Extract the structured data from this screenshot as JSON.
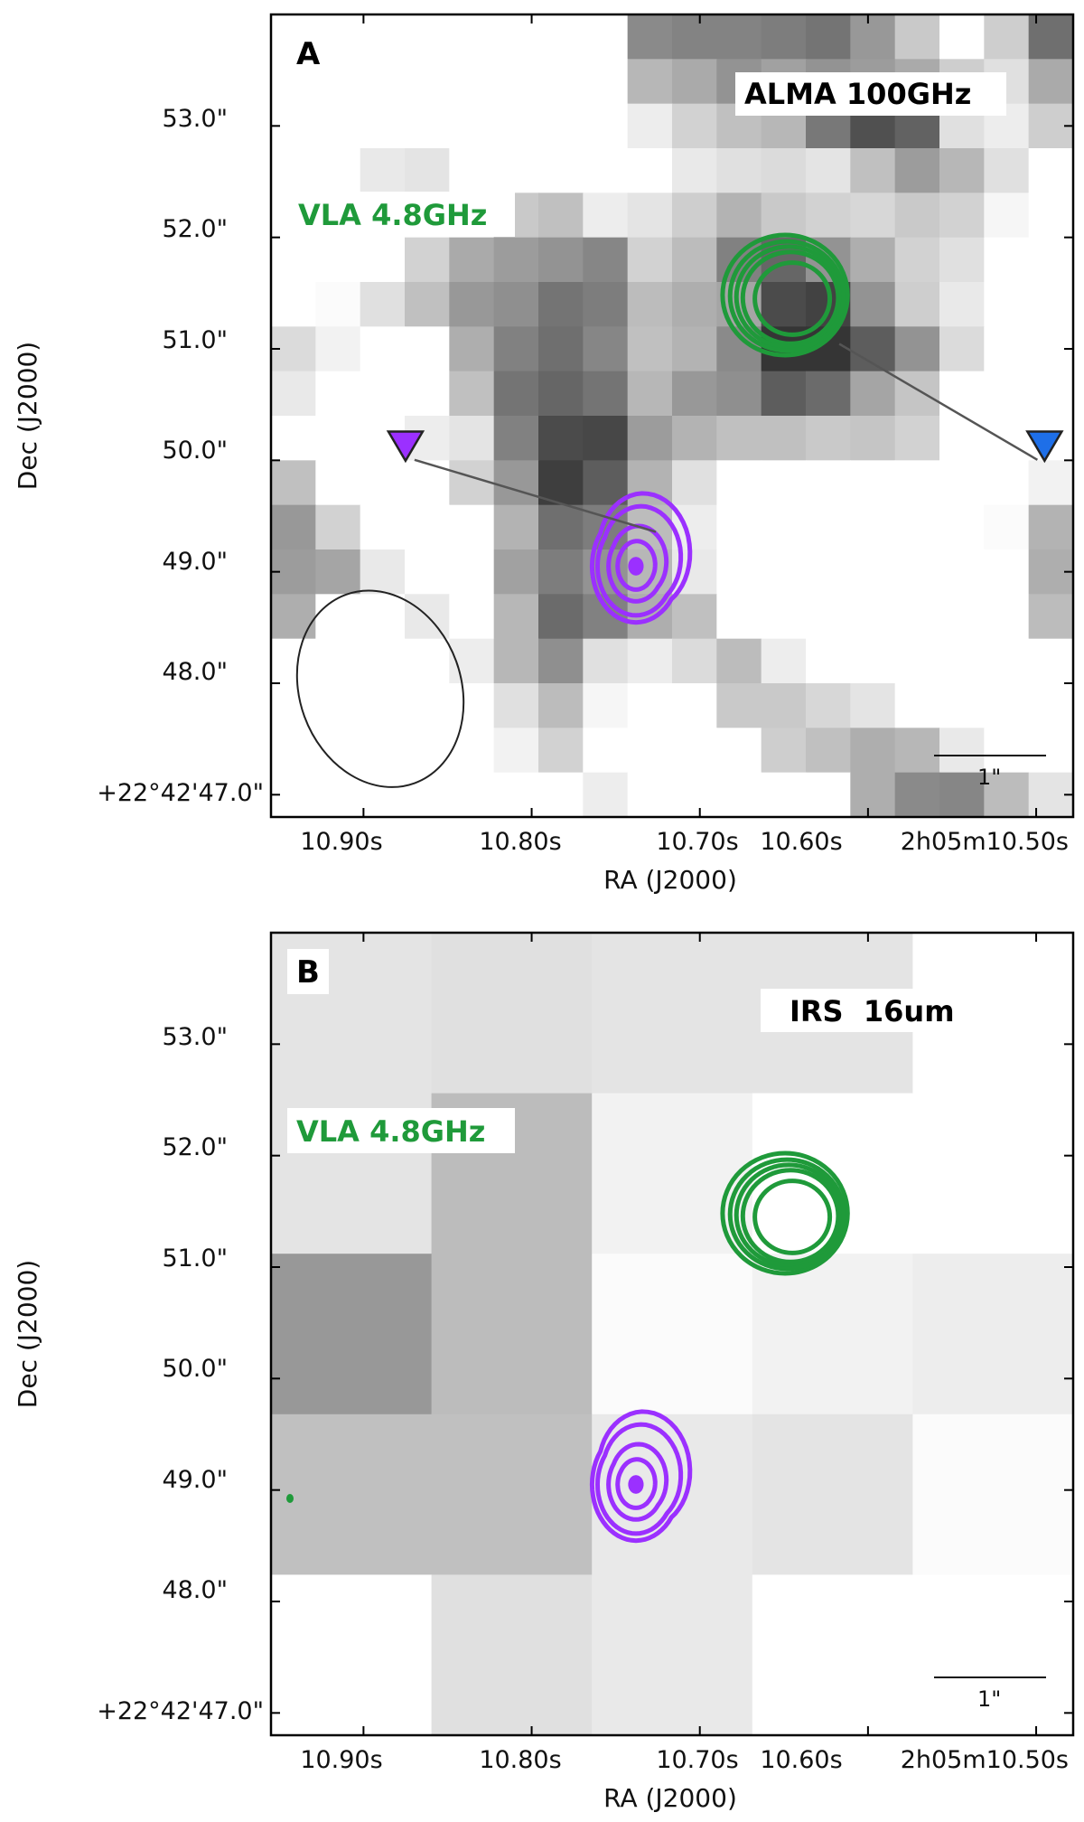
{
  "figure": {
    "panels": [
      {
        "id": "A",
        "letter": "A",
        "band_label": "ALMA 100GHz",
        "overlay_label": "VLA 4.8GHz",
        "scale_bar_label": "1\"",
        "x_axis_title": "RA (J2000)",
        "y_axis_title": "Dec (J2000)",
        "x_tick_labels": [
          "10.90s",
          "10.80s",
          "10.70s",
          "10.60s",
          "2h05m10.50s"
        ],
        "y_tick_labels": [
          "53.0\"",
          "52.0\"",
          "51.0\"",
          "50.0\"",
          "49.0\"",
          "48.0\"",
          "+22°42'47.0\""
        ],
        "has_beam": true,
        "has_markers": true
      },
      {
        "id": "B",
        "letter": "B",
        "band_label": "IRS  16um",
        "overlay_label": "VLA 4.8GHz",
        "scale_bar_label": "1\"",
        "x_axis_title": "RA (J2000)",
        "y_axis_title": "Dec (J2000)",
        "x_tick_labels": [
          "10.90s",
          "10.80s",
          "10.70s",
          "10.60s",
          "2h05m10.50s"
        ],
        "y_tick_labels": [
          "53.0\"",
          "52.0\"",
          "51.0\"",
          "50.0\"",
          "49.0\"",
          "48.0\"",
          "+22°42'47.0\""
        ],
        "has_beam": false,
        "has_markers": false
      }
    ],
    "colors": {
      "vla_green": "#1f9a3a",
      "purple_source": "#9b30ff",
      "blue_marker": "#1e6fe8",
      "axis": "#000000"
    }
  },
  "chart_data": [
    {
      "type": "heatmap",
      "title": "ALMA 100GHz",
      "xlabel": "RA (J2000)",
      "ylabel": "Dec (J2000)",
      "xlim_sec": [
        10.955,
        10.478
      ],
      "ylim_arcsec": [
        46.8,
        54.0
      ],
      "x_ticks_sec": [
        10.9,
        10.8,
        10.7,
        10.6,
        10.5
      ],
      "y_ticks_arcsec": [
        53.0,
        52.0,
        51.0,
        50.0,
        49.0,
        48.0,
        47.0
      ],
      "grid": false,
      "pixel_grid": {
        "ncols": 18,
        "nrows": 18,
        "values": [
          [
            0,
            0,
            0,
            0,
            0,
            0,
            0,
            0,
            52,
            55,
            55,
            58,
            62,
            46,
            24,
            0,
            22,
            64
          ],
          [
            0,
            0,
            0,
            0,
            0,
            0,
            0,
            0,
            32,
            38,
            48,
            42,
            48,
            44,
            38,
            22,
            14,
            38
          ],
          [
            0,
            0,
            0,
            0,
            0,
            0,
            0,
            0,
            8,
            20,
            28,
            32,
            60,
            78,
            70,
            14,
            8,
            22
          ],
          [
            0,
            0,
            10,
            12,
            0,
            0,
            0,
            0,
            0,
            10,
            14,
            16,
            12,
            28,
            44,
            32,
            14,
            0
          ],
          [
            0,
            0,
            0,
            0,
            0,
            24,
            28,
            8,
            12,
            22,
            34,
            24,
            20,
            18,
            24,
            20,
            4,
            0
          ],
          [
            0,
            0,
            0,
            20,
            38,
            44,
            48,
            54,
            20,
            30,
            56,
            68,
            48,
            36,
            20,
            14,
            0,
            0
          ],
          [
            0,
            2,
            14,
            28,
            46,
            50,
            62,
            58,
            30,
            36,
            40,
            80,
            84,
            48,
            22,
            10,
            0,
            0
          ],
          [
            16,
            6,
            0,
            0,
            36,
            56,
            64,
            54,
            28,
            34,
            52,
            90,
            90,
            72,
            48,
            16,
            0,
            0
          ],
          [
            10,
            0,
            0,
            0,
            28,
            62,
            68,
            62,
            32,
            46,
            50,
            72,
            66,
            40,
            26,
            0,
            0,
            0
          ],
          [
            0,
            0,
            0,
            8,
            12,
            56,
            80,
            82,
            44,
            34,
            28,
            28,
            24,
            26,
            20,
            0,
            0,
            0
          ],
          [
            28,
            0,
            0,
            0,
            20,
            46,
            86,
            72,
            34,
            14,
            0,
            0,
            0,
            0,
            0,
            0,
            0,
            6
          ],
          [
            46,
            20,
            0,
            0,
            0,
            34,
            64,
            58,
            30,
            8,
            0,
            0,
            0,
            0,
            0,
            0,
            2,
            34
          ],
          [
            44,
            40,
            10,
            0,
            0,
            42,
            58,
            48,
            32,
            10,
            0,
            0,
            0,
            0,
            0,
            0,
            0,
            36
          ],
          [
            36,
            0,
            0,
            10,
            0,
            32,
            66,
            56,
            36,
            28,
            0,
            0,
            0,
            0,
            0,
            0,
            0,
            30
          ],
          [
            0,
            0,
            0,
            0,
            8,
            32,
            50,
            14,
            8,
            16,
            30,
            8,
            0,
            0,
            0,
            0,
            0,
            0
          ],
          [
            0,
            0,
            0,
            0,
            0,
            14,
            30,
            4,
            0,
            0,
            24,
            24,
            18,
            12,
            0,
            0,
            0,
            0
          ],
          [
            0,
            0,
            0,
            0,
            0,
            6,
            20,
            0,
            0,
            0,
            0,
            22,
            28,
            36,
            32,
            10,
            0,
            0
          ],
          [
            0,
            0,
            0,
            0,
            0,
            0,
            0,
            8,
            0,
            0,
            0,
            0,
            0,
            36,
            52,
            54,
            30,
            12
          ]
        ]
      },
      "contours": [
        {
          "name": "VLA 4.8GHz",
          "color": "green",
          "center_ra_sec": 10.645,
          "center_dec_arcsec": 51.45,
          "radii_arcsec": [
            0.33,
            0.42,
            0.46,
            0.5,
            0.55
          ]
        },
        {
          "name": "purple source",
          "color": "purple",
          "center_ra_sec": 10.738,
          "center_dec_arcsec": 49.05,
          "radii_arcsec": [
            0.06,
            0.2,
            0.3,
            0.42,
            0.48
          ]
        }
      ],
      "markers": [
        {
          "shape": "triangle-down",
          "color": "purple",
          "ra_sec": 10.875,
          "dec_arcsec": 50.15
        },
        {
          "shape": "triangle-down",
          "color": "blue",
          "ra_sec": 10.495,
          "dec_arcsec": 50.15
        }
      ],
      "beam": {
        "major_arcsec": 1.8,
        "minor_arcsec": 1.45,
        "ra_sec": 10.89,
        "dec_arcsec": 47.95
      },
      "scale_bar_arcsec": 1
    },
    {
      "type": "heatmap",
      "title": "IRS  16um",
      "xlabel": "RA (J2000)",
      "ylabel": "Dec (J2000)",
      "xlim_sec": [
        10.955,
        10.478
      ],
      "ylim_arcsec": [
        46.8,
        54.0
      ],
      "x_ticks_sec": [
        10.9,
        10.8,
        10.7,
        10.6,
        10.5
      ],
      "y_ticks_arcsec": [
        53.0,
        52.0,
        51.0,
        50.0,
        49.0,
        48.0,
        47.0
      ],
      "grid": false,
      "pixel_grid": {
        "ncols": 5,
        "nrows": 5,
        "values": [
          [
            12,
            14,
            12,
            12,
            0
          ],
          [
            12,
            30,
            6,
            0,
            0
          ],
          [
            46,
            30,
            2,
            6,
            8
          ],
          [
            28,
            28,
            10,
            12,
            2
          ],
          [
            0,
            14,
            10,
            0,
            0
          ]
        ]
      },
      "contours": [
        {
          "name": "VLA 4.8GHz",
          "color": "green",
          "center_ra_sec": 10.645,
          "center_dec_arcsec": 51.45,
          "radii_arcsec": [
            0.33,
            0.42,
            0.46,
            0.5,
            0.55
          ]
        },
        {
          "name": "purple source",
          "color": "purple",
          "center_ra_sec": 10.738,
          "center_dec_arcsec": 49.05,
          "radii_arcsec": [
            0.06,
            0.2,
            0.3,
            0.42,
            0.48
          ]
        }
      ],
      "scale_bar_arcsec": 1
    }
  ]
}
